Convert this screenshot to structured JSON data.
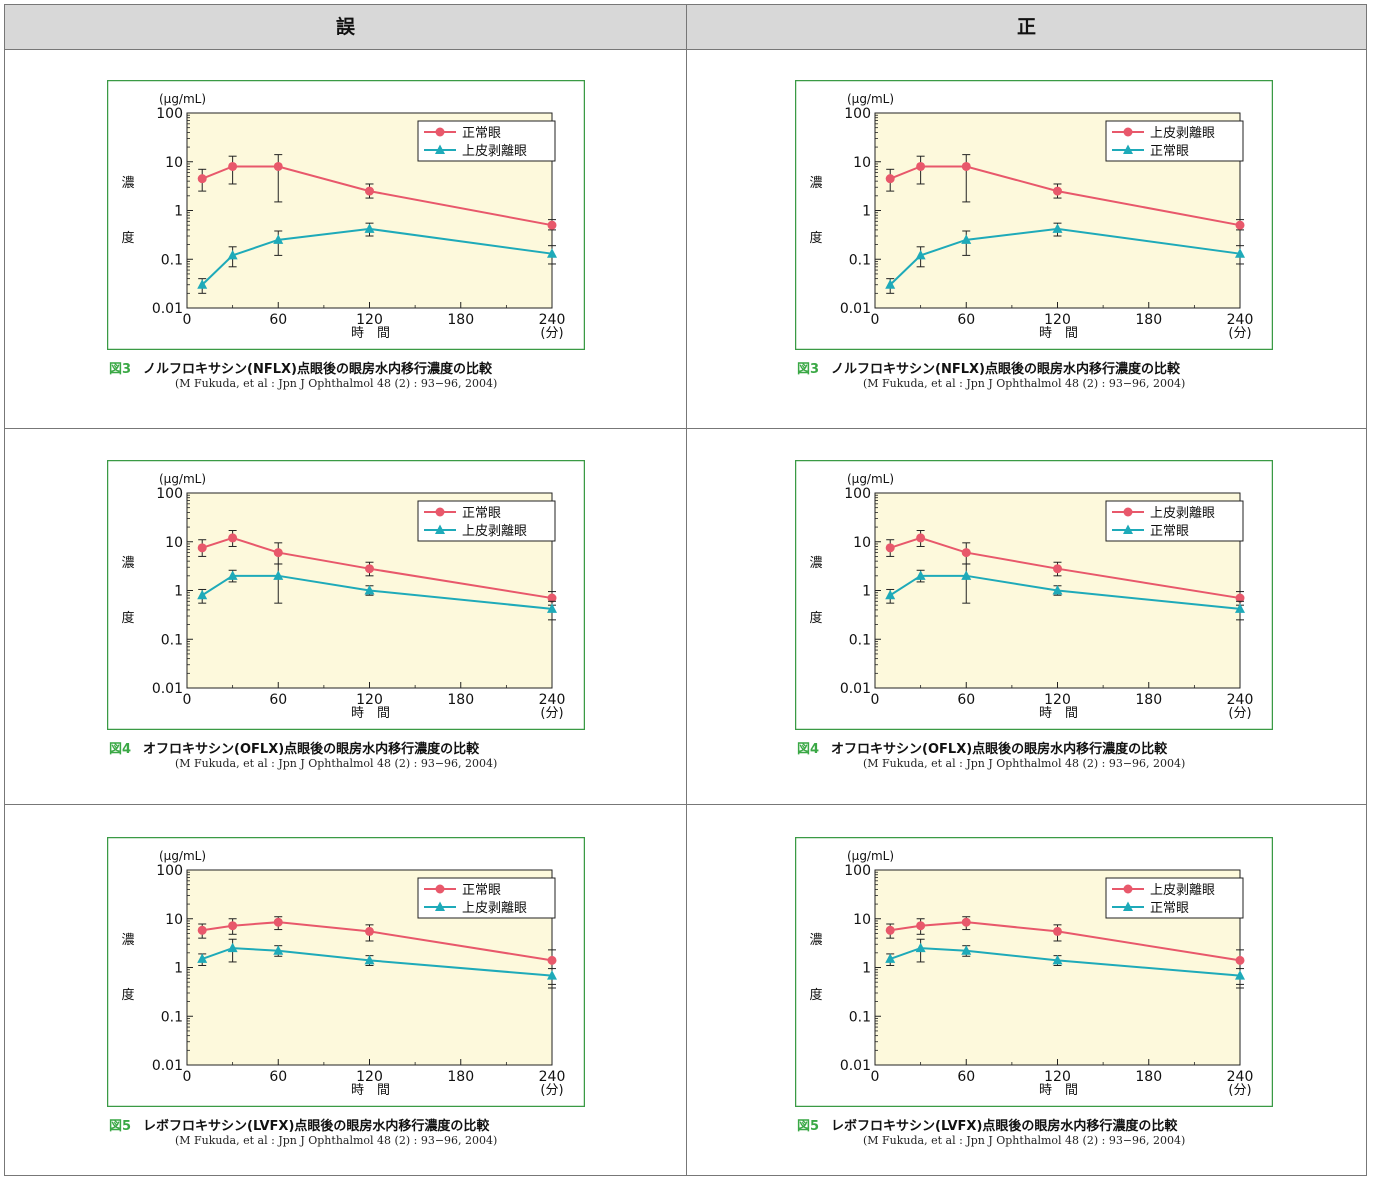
{
  "header": {
    "left": "誤",
    "right": "正"
  },
  "colors": {
    "red": "#e8586b",
    "blue": "#1eaab9",
    "plot_bg": "#fdf9dc",
    "frame": "#3a9a45",
    "caption_num": "#3aa845"
  },
  "common": {
    "unit": "(μg/mL)",
    "ylabel": [
      "濃",
      "度"
    ],
    "xlabel": "時　間",
    "xunit": "(分)",
    "xticks": [
      "0",
      "60",
      "120",
      "180",
      "240"
    ],
    "yticks": [
      "100",
      "10",
      "1",
      "0.1",
      "0.01"
    ],
    "citation": "(M Fukuda, et al : Jpn J Ophthalmol 48 (2) : 93−96, 2004)"
  },
  "chart_data": [
    {
      "type": "line",
      "column": "誤",
      "figure": "図3",
      "title": "ノルフロキサシン(NFLX)点眼後の眼房水内移行濃度の比較",
      "xlabel": "時　間",
      "ylabel": "濃度",
      "xlim": [
        0,
        240
      ],
      "ylim": [
        0.01,
        100
      ],
      "yscale": "log",
      "legend": "top-right",
      "x": [
        10,
        30,
        60,
        120,
        240
      ],
      "series": [
        {
          "name": "正常眼",
          "color": "#e8586b",
          "marker": "circle",
          "values": [
            4.5,
            8,
            8,
            2.5,
            0.5
          ],
          "err_low": [
            2.5,
            3.5,
            1.5,
            1.8,
            0.4
          ],
          "err_high": [
            7,
            13,
            14,
            3.5,
            0.65
          ]
        },
        {
          "name": "上皮剥離眼",
          "color": "#1eaab9",
          "marker": "triangle",
          "values": [
            0.03,
            0.12,
            0.25,
            0.42,
            0.13
          ],
          "err_low": [
            0.02,
            0.07,
            0.12,
            0.3,
            0.08
          ],
          "err_high": [
            0.04,
            0.18,
            0.38,
            0.55,
            0.19
          ]
        }
      ]
    },
    {
      "type": "line",
      "column": "正",
      "figure": "図3",
      "title": "ノルフロキサシン(NFLX)点眼後の眼房水内移行濃度の比較",
      "xlabel": "時　間",
      "ylabel": "濃度",
      "xlim": [
        0,
        240
      ],
      "ylim": [
        0.01,
        100
      ],
      "yscale": "log",
      "legend": "top-right",
      "x": [
        10,
        30,
        60,
        120,
        240
      ],
      "series": [
        {
          "name": "上皮剥離眼",
          "color": "#e8586b",
          "marker": "circle",
          "values": [
            4.5,
            8,
            8,
            2.5,
            0.5
          ],
          "err_low": [
            2.5,
            3.5,
            1.5,
            1.8,
            0.4
          ],
          "err_high": [
            7,
            13,
            14,
            3.5,
            0.65
          ]
        },
        {
          "name": "正常眼",
          "color": "#1eaab9",
          "marker": "triangle",
          "values": [
            0.03,
            0.12,
            0.25,
            0.42,
            0.13
          ],
          "err_low": [
            0.02,
            0.07,
            0.12,
            0.3,
            0.08
          ],
          "err_high": [
            0.04,
            0.18,
            0.38,
            0.55,
            0.19
          ]
        }
      ]
    },
    {
      "type": "line",
      "column": "誤",
      "figure": "図4",
      "title": "オフロキサシン(OFLX)点眼後の眼房水内移行濃度の比較",
      "xlabel": "時　間",
      "ylabel": "濃度",
      "xlim": [
        0,
        240
      ],
      "ylim": [
        0.01,
        100
      ],
      "yscale": "log",
      "legend": "top-right",
      "x": [
        10,
        30,
        60,
        120,
        240
      ],
      "series": [
        {
          "name": "正常眼",
          "color": "#e8586b",
          "marker": "circle",
          "values": [
            7.5,
            12,
            6,
            2.8,
            0.7
          ],
          "err_low": [
            5,
            8,
            3.5,
            2,
            0.5
          ],
          "err_high": [
            11,
            17,
            9.5,
            3.8,
            0.95
          ]
        },
        {
          "name": "上皮剥離眼",
          "color": "#1eaab9",
          "marker": "triangle",
          "values": [
            0.8,
            2,
            2,
            1,
            0.42
          ],
          "err_low": [
            0.55,
            1.5,
            0.55,
            0.8,
            0.25
          ],
          "err_high": [
            1.05,
            2.6,
            3.5,
            1.25,
            0.6
          ]
        }
      ]
    },
    {
      "type": "line",
      "column": "正",
      "figure": "図4",
      "title": "オフロキサシン(OFLX)点眼後の眼房水内移行濃度の比較",
      "xlabel": "時　間",
      "ylabel": "濃度",
      "xlim": [
        0,
        240
      ],
      "ylim": [
        0.01,
        100
      ],
      "yscale": "log",
      "legend": "top-right",
      "x": [
        10,
        30,
        60,
        120,
        240
      ],
      "series": [
        {
          "name": "上皮剥離眼",
          "color": "#e8586b",
          "marker": "circle",
          "values": [
            7.5,
            12,
            6,
            2.8,
            0.7
          ],
          "err_low": [
            5,
            8,
            3.5,
            2,
            0.5
          ],
          "err_high": [
            11,
            17,
            9.5,
            3.8,
            0.95
          ]
        },
        {
          "name": "正常眼",
          "color": "#1eaab9",
          "marker": "triangle",
          "values": [
            0.8,
            2,
            2,
            1,
            0.42
          ],
          "err_low": [
            0.55,
            1.5,
            0.55,
            0.8,
            0.25
          ],
          "err_high": [
            1.05,
            2.6,
            3.5,
            1.25,
            0.6
          ]
        }
      ]
    },
    {
      "type": "line",
      "column": "誤",
      "figure": "図5",
      "title": "レボフロキサシン(LVFX)点眼後の眼房水内移行濃度の比較",
      "xlabel": "時　間",
      "ylabel": "濃度",
      "xlim": [
        0,
        240
      ],
      "ylim": [
        0.01,
        100
      ],
      "yscale": "log",
      "legend": "top-right",
      "x": [
        10,
        30,
        60,
        120,
        240
      ],
      "series": [
        {
          "name": "正常眼",
          "color": "#e8586b",
          "marker": "circle",
          "values": [
            5.8,
            7.2,
            8.5,
            5.5,
            1.4
          ],
          "err_low": [
            4,
            4.8,
            6,
            3.5,
            0.45
          ],
          "err_high": [
            7.8,
            10,
            11,
            7.5,
            2.3
          ]
        },
        {
          "name": "上皮剥離眼",
          "color": "#1eaab9",
          "marker": "triangle",
          "values": [
            1.5,
            2.5,
            2.2,
            1.4,
            0.68
          ],
          "err_low": [
            1.1,
            1.3,
            1.7,
            1.1,
            0.38
          ],
          "err_high": [
            1.9,
            3.8,
            2.8,
            1.75,
            0.95
          ]
        }
      ]
    },
    {
      "type": "line",
      "column": "正",
      "figure": "図5",
      "title": "レボフロキサシン(LVFX)点眼後の眼房水内移行濃度の比較",
      "xlabel": "時　間",
      "ylabel": "濃度",
      "xlim": [
        0,
        240
      ],
      "ylim": [
        0.01,
        100
      ],
      "yscale": "log",
      "legend": "top-right",
      "x": [
        10,
        30,
        60,
        120,
        240
      ],
      "series": [
        {
          "name": "上皮剥離眼",
          "color": "#e8586b",
          "marker": "circle",
          "values": [
            5.8,
            7.2,
            8.5,
            5.5,
            1.4
          ],
          "err_low": [
            4,
            4.8,
            6,
            3.5,
            0.45
          ],
          "err_high": [
            7.8,
            10,
            11,
            7.5,
            2.3
          ]
        },
        {
          "name": "正常眼",
          "color": "#1eaab9",
          "marker": "triangle",
          "values": [
            1.5,
            2.5,
            2.2,
            1.4,
            0.68
          ],
          "err_low": [
            1.1,
            1.3,
            1.7,
            1.1,
            0.38
          ],
          "err_high": [
            1.9,
            3.8,
            2.8,
            1.75,
            0.95
          ]
        }
      ]
    }
  ]
}
